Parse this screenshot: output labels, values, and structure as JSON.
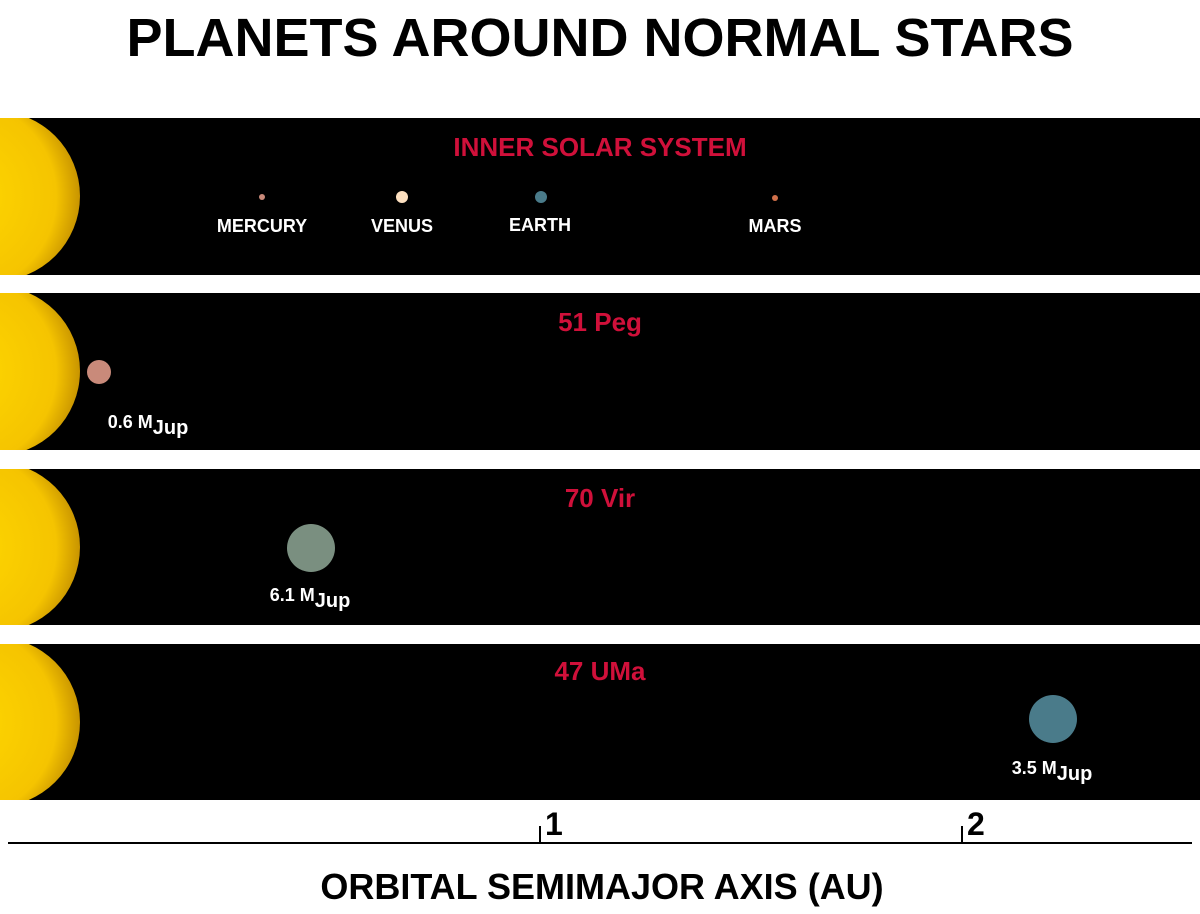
{
  "title": "PLANETS AROUND NORMAL STARS",
  "panels": [
    {
      "title": "INNER SOLAR SYSTEM",
      "planets": [
        {
          "label": "MERCURY"
        },
        {
          "label": "VENUS"
        },
        {
          "label": "EARTH"
        },
        {
          "label": "MARS"
        }
      ]
    },
    {
      "title": "51 Peg",
      "planets": [
        {
          "label": "0.6 M",
          "subscript": "Jup"
        }
      ]
    },
    {
      "title": "70 Vir",
      "planets": [
        {
          "label": "6.1 M",
          "subscript": "Jup"
        }
      ]
    },
    {
      "title": "47 UMa",
      "planets": [
        {
          "label": "3.5 M",
          "subscript": "Jup"
        }
      ]
    }
  ],
  "axis": {
    "ticks": [
      "1",
      "2"
    ],
    "label": "ORBITAL SEMIMAJOR AXIS (AU)"
  }
}
